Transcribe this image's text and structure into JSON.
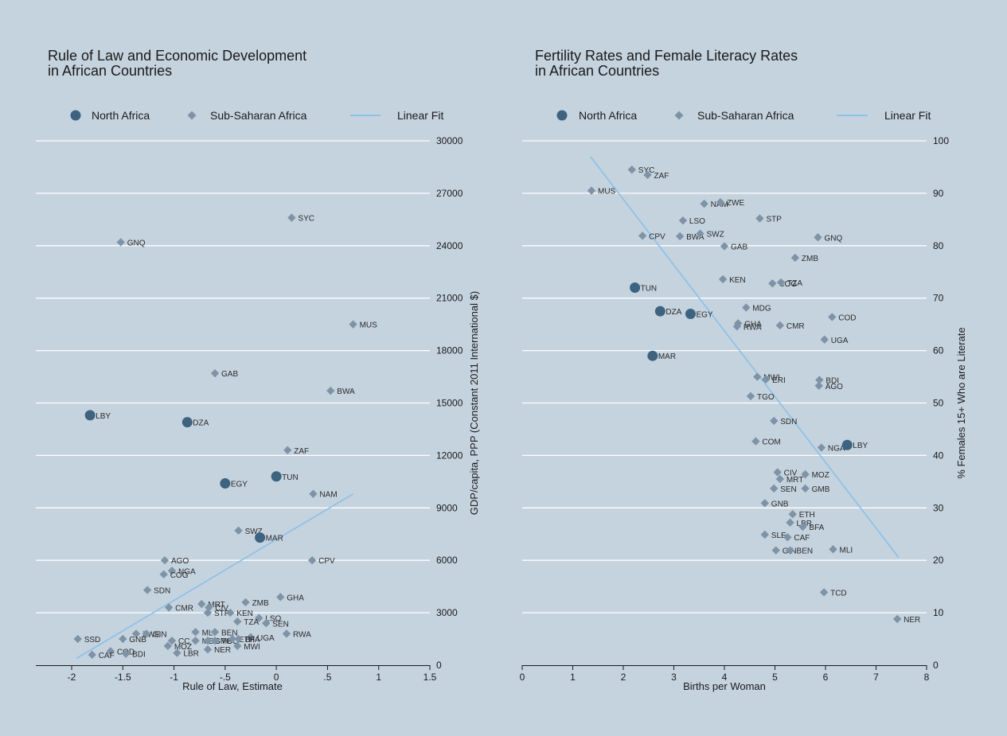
{
  "colors": {
    "background": "#c5d3df",
    "north": "#3d6380",
    "sub": "#7f93a6",
    "fit": "#8fc2e6",
    "grid": "#ffffff",
    "axis": "#1a1a1a"
  },
  "chart_data": [
    {
      "type": "scatter",
      "title": [
        "Rule of Law and Economic Development",
        "in African Countries"
      ],
      "xlabel": "Rule of Law, Estimate",
      "ylabel": "GDP/capita, PPP (Constant 2011 International $)",
      "xlim": [
        -2.35,
        1.5
      ],
      "ylim": [
        0,
        30000
      ],
      "xticks": [
        -2,
        -1.5,
        -1,
        -0.5,
        0,
        0.5,
        1,
        1.5
      ],
      "xticklabels": [
        "-2",
        "-1.5",
        "-1",
        "-.5",
        "0",
        ".5",
        "1",
        "1.5"
      ],
      "yticks": [
        0,
        3000,
        6000,
        9000,
        12000,
        15000,
        18000,
        21000,
        24000,
        27000,
        30000
      ],
      "yaxis_side": "right",
      "grid": true,
      "legend": [
        "North Africa",
        "Sub-Saharan Africa",
        "Linear Fit"
      ],
      "fit": {
        "x": [
          -1.95,
          0.75
        ],
        "y": [
          400,
          9800
        ]
      },
      "north": [
        {
          "label": "LBY",
          "x": -1.82,
          "y": 14300
        },
        {
          "label": "DZA",
          "x": -0.87,
          "y": 13900
        },
        {
          "label": "TUN",
          "x": 0.0,
          "y": 10800
        },
        {
          "label": "EGY",
          "x": -0.5,
          "y": 10400
        },
        {
          "label": "MAR",
          "x": -0.16,
          "y": 7300
        }
      ],
      "sub": [
        {
          "label": "SYC",
          "x": 0.15,
          "y": 25600
        },
        {
          "label": "GNQ",
          "x": -1.52,
          "y": 24200
        },
        {
          "label": "MUS",
          "x": 0.75,
          "y": 19500
        },
        {
          "label": "GAB",
          "x": -0.6,
          "y": 16700
        },
        {
          "label": "BWA",
          "x": 0.53,
          "y": 15700
        },
        {
          "label": "ZAF",
          "x": 0.11,
          "y": 12300
        },
        {
          "label": "NAM",
          "x": 0.36,
          "y": 9800
        },
        {
          "label": "SWZ",
          "x": -0.37,
          "y": 7700
        },
        {
          "label": "CPV",
          "x": 0.35,
          "y": 6000
        },
        {
          "label": "AGO",
          "x": -1.09,
          "y": 6000
        },
        {
          "label": "NGA",
          "x": -1.02,
          "y": 5400
        },
        {
          "label": "COG",
          "x": -1.1,
          "y": 5200
        },
        {
          "label": "SDN",
          "x": -1.26,
          "y": 4300
        },
        {
          "label": "GHA",
          "x": 0.04,
          "y": 3900
        },
        {
          "label": "ZMB",
          "x": -0.3,
          "y": 3600
        },
        {
          "label": "MRT",
          "x": -0.73,
          "y": 3500
        },
        {
          "label": "CIV",
          "x": -0.66,
          "y": 3300
        },
        {
          "label": "CMR",
          "x": -1.05,
          "y": 3300
        },
        {
          "label": "STP",
          "x": -0.67,
          "y": 3000
        },
        {
          "label": "KEN",
          "x": -0.45,
          "y": 3000
        },
        {
          "label": "LSO",
          "x": -0.17,
          "y": 2700
        },
        {
          "label": "TZA",
          "x": -0.38,
          "y": 2500
        },
        {
          "label": "SEN",
          "x": -0.1,
          "y": 2400
        },
        {
          "label": "SSD",
          "x": -1.94,
          "y": 1500
        },
        {
          "label": "ZWE",
          "x": -1.37,
          "y": 1800
        },
        {
          "label": "GIN",
          "x": -1.27,
          "y": 1800
        },
        {
          "label": "MLI",
          "x": -0.79,
          "y": 1900
        },
        {
          "label": "BEN",
          "x": -0.6,
          "y": 1900
        },
        {
          "label": "GNB",
          "x": -1.5,
          "y": 1500
        },
        {
          "label": "UGA",
          "x": -0.25,
          "y": 1600
        },
        {
          "label": "RWA",
          "x": 0.1,
          "y": 1800
        },
        {
          "label": "CC",
          "x": -1.02,
          "y": 1400
        },
        {
          "label": "MDG",
          "x": -0.79,
          "y": 1400
        },
        {
          "label": "GMB",
          "x": -0.67,
          "y": 1400
        },
        {
          "label": "TGO",
          "x": -0.6,
          "y": 1400
        },
        {
          "label": "ETH",
          "x": -0.43,
          "y": 1500
        },
        {
          "label": "BFA",
          "x": -0.37,
          "y": 1500
        },
        {
          "label": "MOZ",
          "x": -1.06,
          "y": 1100
        },
        {
          "label": "MWI",
          "x": -0.38,
          "y": 1100
        },
        {
          "label": "NER",
          "x": -0.67,
          "y": 900
        },
        {
          "label": "LBR",
          "x": -0.97,
          "y": 700
        },
        {
          "label": "COD",
          "x": -1.62,
          "y": 800
        },
        {
          "label": "BDI",
          "x": -1.47,
          "y": 650
        },
        {
          "label": "CAF",
          "x": -1.8,
          "y": 600
        }
      ]
    },
    {
      "type": "scatter",
      "title": [
        "Fertility Rates and Female Literacy Rates",
        "in African Countries"
      ],
      "xlabel": "Births per Woman",
      "ylabel": "% Females 15+ Who are Literate",
      "xlim": [
        0,
        8
      ],
      "ylim": [
        0,
        100
      ],
      "xticks": [
        0,
        1,
        2,
        3,
        4,
        5,
        6,
        7,
        8
      ],
      "xticklabels": [
        "0",
        "1",
        "2",
        "3",
        "4",
        "5",
        "6",
        "7",
        "8"
      ],
      "yticks": [
        0,
        10,
        20,
        30,
        40,
        50,
        60,
        70,
        80,
        90,
        100
      ],
      "yaxis_side": "right",
      "grid": true,
      "legend": [
        "North Africa",
        "Sub-Saharan Africa",
        "Linear Fit"
      ],
      "fit": {
        "x": [
          1.35,
          7.45
        ],
        "y": [
          97,
          20.5
        ]
      },
      "north": [
        {
          "label": "TUN",
          "x": 2.23,
          "y": 72
        },
        {
          "label": "DZA",
          "x": 2.73,
          "y": 67.5
        },
        {
          "label": "EGY",
          "x": 3.33,
          "y": 67
        },
        {
          "label": "MAR",
          "x": 2.58,
          "y": 59
        },
        {
          "label": "LBY",
          "x": 6.43,
          "y": 42
        }
      ],
      "sub": [
        {
          "label": "SYC",
          "x": 2.17,
          "y": 94.5
        },
        {
          "label": "ZAF",
          "x": 2.48,
          "y": 93.5
        },
        {
          "label": "MUS",
          "x": 1.37,
          "y": 90.5
        },
        {
          "label": "NAM",
          "x": 3.6,
          "y": 88
        },
        {
          "label": "ZWE",
          "x": 3.92,
          "y": 88.3
        },
        {
          "label": "STP",
          "x": 4.7,
          "y": 85.2
        },
        {
          "label": "LSO",
          "x": 3.18,
          "y": 84.8
        },
        {
          "label": "CPV",
          "x": 2.38,
          "y": 81.9
        },
        {
          "label": "BWA",
          "x": 3.12,
          "y": 81.8
        },
        {
          "label": "SWZ",
          "x": 3.52,
          "y": 82.3
        },
        {
          "label": "GNQ",
          "x": 5.85,
          "y": 81.6
        },
        {
          "label": "GAB",
          "x": 4.0,
          "y": 79.9
        },
        {
          "label": "ZMB",
          "x": 5.4,
          "y": 77.7
        },
        {
          "label": "KEN",
          "x": 3.97,
          "y": 73.6
        },
        {
          "label": "COG",
          "x": 4.95,
          "y": 72.8
        },
        {
          "label": "TZA",
          "x": 5.12,
          "y": 73
        },
        {
          "label": "MDG",
          "x": 4.43,
          "y": 68.2
        },
        {
          "label": "COD",
          "x": 6.13,
          "y": 66.4
        },
        {
          "label": "GHA",
          "x": 4.27,
          "y": 65.2
        },
        {
          "label": "RWA",
          "x": 4.25,
          "y": 64.6
        },
        {
          "label": "CMR",
          "x": 5.1,
          "y": 64.8
        },
        {
          "label": "UGA",
          "x": 5.98,
          "y": 62.1
        },
        {
          "label": "MWI",
          "x": 4.65,
          "y": 55
        },
        {
          "label": "ERI",
          "x": 4.82,
          "y": 54.5
        },
        {
          "label": "BDI",
          "x": 5.88,
          "y": 54.4
        },
        {
          "label": "AGO",
          "x": 5.87,
          "y": 53.3
        },
        {
          "label": "TGO",
          "x": 4.52,
          "y": 51.3
        },
        {
          "label": "SDN",
          "x": 4.98,
          "y": 46.6
        },
        {
          "label": "COM",
          "x": 4.62,
          "y": 42.7
        },
        {
          "label": "NGA",
          "x": 5.92,
          "y": 41.5
        },
        {
          "label": "CIV",
          "x": 5.05,
          "y": 36.8
        },
        {
          "label": "MOZ",
          "x": 5.6,
          "y": 36.4
        },
        {
          "label": "MRT",
          "x": 5.1,
          "y": 35.5
        },
        {
          "label": "SEN",
          "x": 4.98,
          "y": 33.7
        },
        {
          "label": "GMB",
          "x": 5.6,
          "y": 33.7
        },
        {
          "label": "GNB",
          "x": 4.8,
          "y": 30.9
        },
        {
          "label": "ETH",
          "x": 5.35,
          "y": 28.8
        },
        {
          "label": "LBR",
          "x": 5.3,
          "y": 27.2
        },
        {
          "label": "BFA",
          "x": 5.55,
          "y": 26.4
        },
        {
          "label": "SLE",
          "x": 4.8,
          "y": 24.9
        },
        {
          "label": "CAF",
          "x": 5.25,
          "y": 24.4
        },
        {
          "label": "GIN",
          "x": 5.02,
          "y": 21.9
        },
        {
          "label": "BEN",
          "x": 5.3,
          "y": 21.9
        },
        {
          "label": "MLI",
          "x": 6.15,
          "y": 22.1
        },
        {
          "label": "TCD",
          "x": 5.97,
          "y": 13.9
        },
        {
          "label": "NER",
          "x": 7.42,
          "y": 8.8
        }
      ]
    }
  ]
}
